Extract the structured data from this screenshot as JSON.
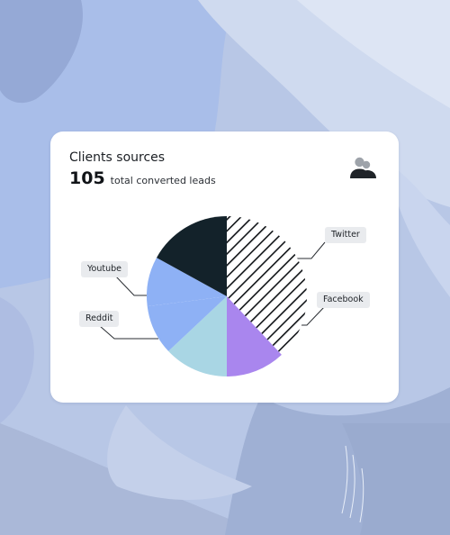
{
  "card": {
    "title": "Clients sources",
    "total_value": "105",
    "total_label": "total converted leads",
    "icon": "users-icon"
  },
  "chart_data": {
    "type": "pie",
    "title": "Clients sources",
    "total": 105,
    "slices": [
      {
        "label": "Twitter",
        "percent": 38,
        "color": "#ffffff",
        "pattern": "diagonal-hatch"
      },
      {
        "label": "Facebook",
        "percent": 12,
        "color": "#a986ee"
      },
      {
        "label": "",
        "percent": 13,
        "color": "#a9d6e4"
      },
      {
        "label": "Reddit",
        "percent": 10,
        "color": "#8eb1f5"
      },
      {
        "label": "Youtube",
        "percent": 10,
        "color": "#8eb1f5"
      },
      {
        "label": "",
        "percent": 17,
        "color": "#13222a"
      }
    ],
    "legend_placement": "callouts on both sides"
  }
}
